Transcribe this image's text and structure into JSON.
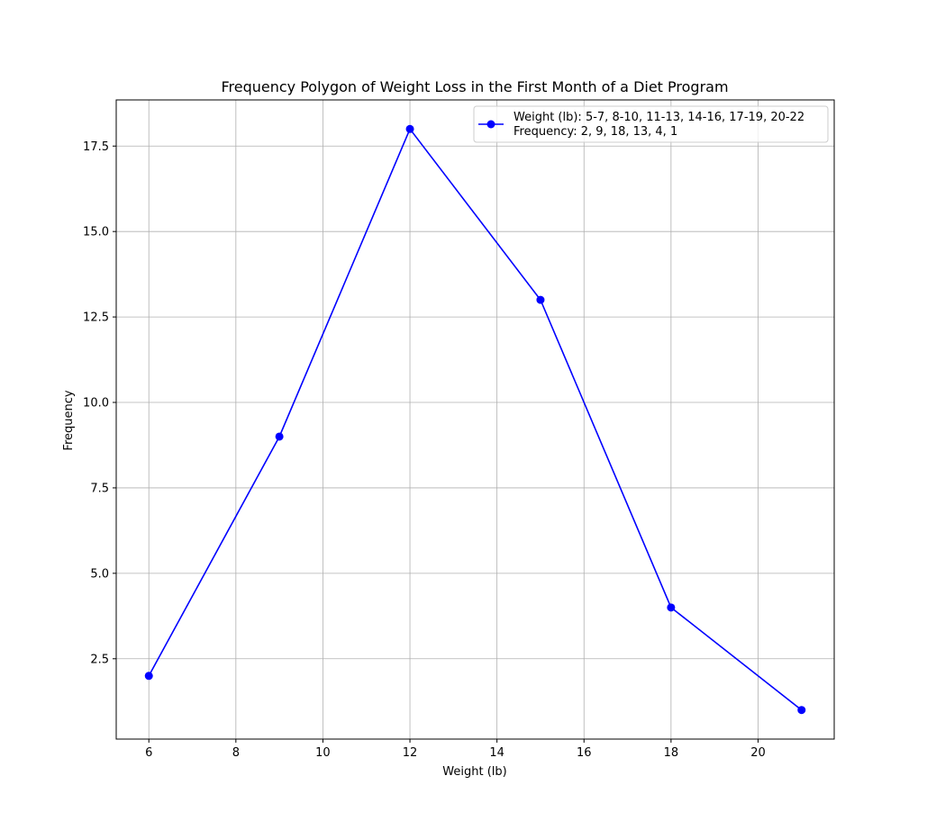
{
  "chart_data": {
    "type": "line",
    "title": "Frequency Polygon of Weight Loss in the First Month of a Diet Program",
    "xlabel": "Weight (lb)",
    "ylabel": "Frequency",
    "x": [
      6,
      9,
      12,
      15,
      18,
      21
    ],
    "series": [
      {
        "name": "Weight (lb): 5-7, 8-10, 11-13, 14-16, 17-19, 20-22",
        "name_line2": "Frequency: 2, 9, 18, 13, 4, 1",
        "values": [
          2,
          9,
          18,
          13,
          4,
          1
        ],
        "color": "#0000ff"
      }
    ],
    "xticks": [
      6,
      8,
      10,
      12,
      14,
      16,
      18,
      20
    ],
    "xtick_labels": [
      "6",
      "8",
      "10",
      "12",
      "14",
      "16",
      "18",
      "20"
    ],
    "yticks": [
      2.5,
      5.0,
      7.5,
      10.0,
      12.5,
      15.0,
      17.5
    ],
    "ytick_labels": [
      "2.5",
      "5.0",
      "7.5",
      "10.0",
      "12.5",
      "15.0",
      "17.5"
    ],
    "xlim": [
      5.25,
      21.75
    ],
    "ylim": [
      0.15,
      18.85
    ],
    "grid": true,
    "legend_position": "top-right"
  }
}
